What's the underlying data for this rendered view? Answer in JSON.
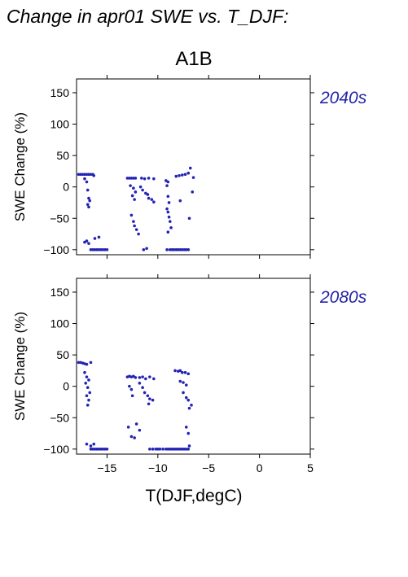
{
  "chart_data": {
    "type": "scatter",
    "title": "Change in apr01 SWE vs. T_DJF:",
    "subtitle": "A1B",
    "xlabel": "T(DJF,degC)",
    "ylabel": "SWE Change (%)",
    "xlim": [
      -18,
      5
    ],
    "ylim": [
      -108,
      172
    ],
    "xticks": [
      -15,
      -10,
      -5,
      0,
      5
    ],
    "yticks": [
      -100,
      -50,
      0,
      50,
      100,
      150
    ],
    "point_color": "#2323b4",
    "grid": false,
    "panels": [
      {
        "label": "2040s",
        "series": [
          {
            "points": [
              [
                -17.8,
                20
              ],
              [
                -17.6,
                20
              ],
              [
                -17.4,
                20
              ],
              [
                -17.2,
                20
              ],
              [
                -17.0,
                20
              ],
              [
                -16.8,
                20
              ],
              [
                -16.6,
                20
              ],
              [
                -16.4,
                20
              ],
              [
                -16.3,
                18
              ],
              [
                -17.2,
                13
              ],
              [
                -17.0,
                8
              ],
              [
                -16.9,
                -5
              ],
              [
                -16.8,
                -18
              ],
              [
                -16.7,
                -22
              ],
              [
                -16.9,
                -28
              ],
              [
                -16.8,
                -32
              ],
              [
                -17.2,
                -88
              ],
              [
                -17.0,
                -86
              ],
              [
                -16.8,
                -90
              ],
              [
                -16.2,
                -82
              ],
              [
                -15.8,
                -80
              ],
              [
                -16.6,
                -100
              ],
              [
                -16.4,
                -100
              ],
              [
                -16.2,
                -100
              ],
              [
                -16.0,
                -100
              ],
              [
                -15.8,
                -100
              ],
              [
                -15.6,
                -100
              ],
              [
                -15.4,
                -100
              ],
              [
                -15.2,
                -100
              ],
              [
                -15.0,
                -100
              ],
              [
                -13.0,
                14
              ],
              [
                -12.8,
                14
              ],
              [
                -12.6,
                14
              ],
              [
                -12.4,
                14
              ],
              [
                -12.2,
                14
              ],
              [
                -11.6,
                14
              ],
              [
                -11.3,
                13
              ],
              [
                -10.9,
                14
              ],
              [
                -10.4,
                13
              ],
              [
                -12.7,
                2
              ],
              [
                -12.4,
                -2
              ],
              [
                -12.2,
                -8
              ],
              [
                -12.5,
                -14
              ],
              [
                -12.3,
                -20
              ],
              [
                -11.7,
                0
              ],
              [
                -11.5,
                -5
              ],
              [
                -11.2,
                -10
              ],
              [
                -10.9,
                -18
              ],
              [
                -10.6,
                -20
              ],
              [
                -10.4,
                -24
              ],
              [
                -11.0,
                -12
              ],
              [
                -12.6,
                -45
              ],
              [
                -12.4,
                -55
              ],
              [
                -12.3,
                -62
              ],
              [
                -12.1,
                -68
              ],
              [
                -11.9,
                -75
              ],
              [
                -11.4,
                -100
              ],
              [
                -11.1,
                -98
              ],
              [
                -9.2,
                10
              ],
              [
                -9.0,
                8
              ],
              [
                -9.1,
                2
              ],
              [
                -9.0,
                -15
              ],
              [
                -8.9,
                -25
              ],
              [
                -9.1,
                -35
              ],
              [
                -9.0,
                -40
              ],
              [
                -8.9,
                -48
              ],
              [
                -8.8,
                -55
              ],
              [
                -8.7,
                -65
              ],
              [
                -9.0,
                -72
              ],
              [
                -9.1,
                -100
              ],
              [
                -8.8,
                -100
              ],
              [
                -8.6,
                -100
              ],
              [
                -8.4,
                -100
              ],
              [
                -8.2,
                -100
              ],
              [
                -8.0,
                -100
              ],
              [
                -7.8,
                -100
              ],
              [
                -7.6,
                -100
              ],
              [
                -7.4,
                -100
              ],
              [
                -7.2,
                -100
              ],
              [
                -7.0,
                -100
              ],
              [
                -8.2,
                17
              ],
              [
                -7.9,
                18
              ],
              [
                -7.6,
                19
              ],
              [
                -7.3,
                20
              ],
              [
                -7.0,
                22
              ],
              [
                -6.8,
                30
              ],
              [
                -6.5,
                15
              ],
              [
                -7.8,
                -22
              ],
              [
                -6.9,
                -50
              ],
              [
                -6.6,
                -8
              ]
            ]
          }
        ]
      },
      {
        "label": "2080s",
        "series": [
          {
            "points": [
              [
                -17.8,
                38
              ],
              [
                -17.6,
                38
              ],
              [
                -17.4,
                37
              ],
              [
                -17.2,
                36
              ],
              [
                -17.0,
                35
              ],
              [
                -16.6,
                38
              ],
              [
                -17.2,
                22
              ],
              [
                -17.0,
                15
              ],
              [
                -16.8,
                10
              ],
              [
                -17.1,
                5
              ],
              [
                -16.9,
                -2
              ],
              [
                -16.7,
                -10
              ],
              [
                -17.0,
                -15
              ],
              [
                -16.8,
                -22
              ],
              [
                -16.9,
                -30
              ],
              [
                -17.0,
                -92
              ],
              [
                -16.6,
                -95
              ],
              [
                -16.3,
                -92
              ],
              [
                -16.6,
                -100
              ],
              [
                -16.4,
                -100
              ],
              [
                -16.2,
                -100
              ],
              [
                -16.0,
                -100
              ],
              [
                -15.8,
                -100
              ],
              [
                -15.6,
                -100
              ],
              [
                -15.4,
                -100
              ],
              [
                -15.2,
                -100
              ],
              [
                -15.0,
                -100
              ],
              [
                -13.0,
                15
              ],
              [
                -12.8,
                16
              ],
              [
                -12.6,
                15
              ],
              [
                -12.4,
                16
              ],
              [
                -12.2,
                14
              ],
              [
                -11.8,
                14
              ],
              [
                -11.5,
                15
              ],
              [
                -11.2,
                12
              ],
              [
                -10.8,
                15
              ],
              [
                -10.4,
                12
              ],
              [
                -12.8,
                0
              ],
              [
                -12.6,
                -5
              ],
              [
                -12.5,
                -15
              ],
              [
                -11.8,
                5
              ],
              [
                -11.5,
                -2
              ],
              [
                -11.3,
                -10
              ],
              [
                -11.0,
                -15
              ],
              [
                -10.8,
                -20
              ],
              [
                -10.5,
                -22
              ],
              [
                -10.9,
                -28
              ],
              [
                -12.9,
                -65
              ],
              [
                -12.6,
                -80
              ],
              [
                -12.3,
                -82
              ],
              [
                -12.1,
                -60
              ],
              [
                -11.8,
                -70
              ],
              [
                -10.8,
                -100
              ],
              [
                -10.5,
                -100
              ],
              [
                -10.2,
                -100
              ],
              [
                -10.0,
                -100
              ],
              [
                -9.8,
                -100
              ],
              [
                -9.5,
                -100
              ],
              [
                -9.2,
                -100
              ],
              [
                -9.0,
                -100
              ],
              [
                -8.8,
                -100
              ],
              [
                -8.6,
                -100
              ],
              [
                -8.4,
                -100
              ],
              [
                -8.2,
                -100
              ],
              [
                -8.0,
                -100
              ],
              [
                -7.8,
                -100
              ],
              [
                -7.6,
                -100
              ],
              [
                -7.4,
                -100
              ],
              [
                -7.2,
                -100
              ],
              [
                -7.0,
                -100
              ],
              [
                -8.3,
                25
              ],
              [
                -8.0,
                24
              ],
              [
                -7.8,
                25
              ],
              [
                -7.6,
                22
              ],
              [
                -7.3,
                22
              ],
              [
                -7.0,
                20
              ],
              [
                -7.8,
                8
              ],
              [
                -7.5,
                6
              ],
              [
                -7.2,
                2
              ],
              [
                -7.5,
                -10
              ],
              [
                -7.2,
                -18
              ],
              [
                -7.0,
                -22
              ],
              [
                -6.9,
                -35
              ],
              [
                -6.7,
                -30
              ],
              [
                -7.2,
                -65
              ],
              [
                -7.0,
                -75
              ],
              [
                -6.9,
                -95
              ]
            ]
          }
        ]
      }
    ]
  }
}
